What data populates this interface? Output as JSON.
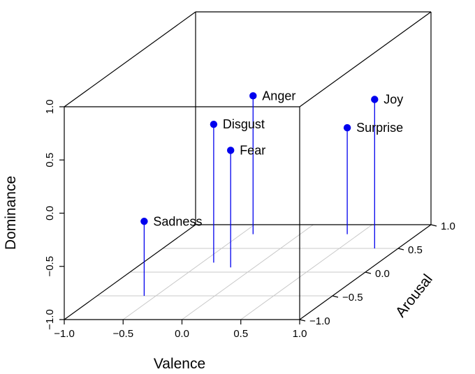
{
  "chart_data": {
    "type": "scatter3d",
    "xlabel": "Valence",
    "ylabel": "Arousal",
    "zlabel": "Dominance",
    "xlim": [
      -1.0,
      1.0
    ],
    "ylim": [
      -1.0,
      1.0
    ],
    "zlim": [
      -1.0,
      1.0
    ],
    "x_ticks": [
      "−1.0",
      "−0.5",
      "0.0",
      "0.5",
      "1.0"
    ],
    "y_ticks": [
      "−1.0",
      "−0.5",
      "0.0",
      "0.5",
      "1.0"
    ],
    "z_ticks": [
      "−1.0",
      "−0.5",
      "0.0",
      "0.5",
      "1.0"
    ],
    "point_color": "#0000ee",
    "grid_color": "#c8c8c8",
    "points": [
      {
        "label": "Sadness",
        "x": -0.6,
        "y": -0.5,
        "z": -0.3
      },
      {
        "label": "Fear",
        "x": -0.2,
        "y": 0.1,
        "z": 0.1
      },
      {
        "label": "Disgust",
        "x": -0.4,
        "y": 0.2,
        "z": 0.3
      },
      {
        "label": "Anger",
        "x": -0.4,
        "y": 0.8,
        "z": 0.3
      },
      {
        "label": "Surprise",
        "x": 0.4,
        "y": 0.8,
        "z": 0.0
      },
      {
        "label": "Joy",
        "x": 0.8,
        "y": 0.5,
        "z": 0.4
      }
    ]
  }
}
